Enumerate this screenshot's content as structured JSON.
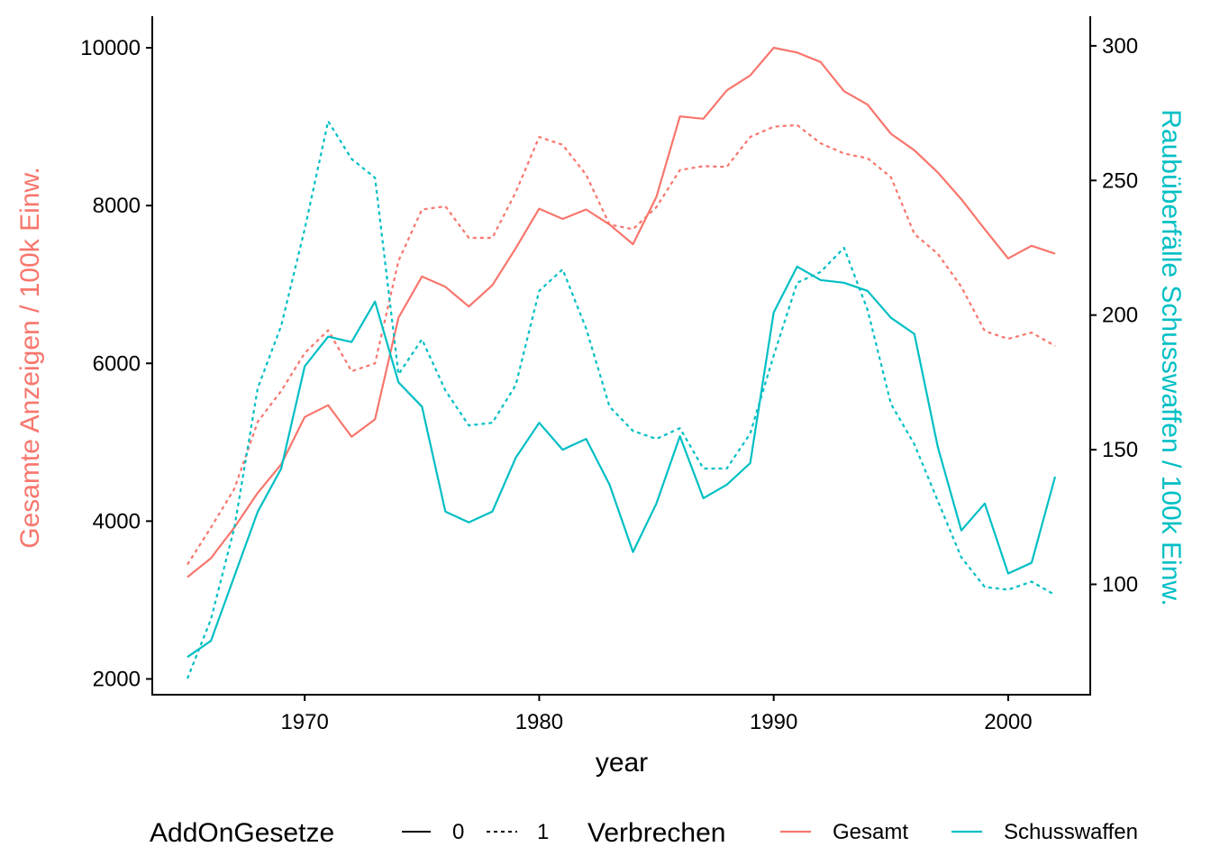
{
  "chart_data": {
    "type": "line",
    "xlabel": "year",
    "ylabel_left": "Gesamte Anzeigen / 100k Einw.",
    "ylabel_right": "Raubüberfälle Schusswaffen / 100k Einw.",
    "xlim": [
      1963.5,
      2003.5
    ],
    "ylim_left": [
      1800,
      10400
    ],
    "ylim_right": [
      59,
      311
    ],
    "x_ticks": [
      "1970",
      "1980",
      "1990",
      "2000"
    ],
    "x_tick_values": [
      1970,
      1980,
      1990,
      2000
    ],
    "y_left_ticks": [
      "2000",
      "4000",
      "6000",
      "8000",
      "10000"
    ],
    "y_left_tick_values": [
      2000,
      4000,
      6000,
      8000,
      10000
    ],
    "y_right_ticks": [
      "100",
      "150",
      "200",
      "250",
      "300"
    ],
    "y_right_tick_values": [
      100,
      150,
      200,
      250,
      300
    ],
    "grid": false,
    "legend_position": "bottom",
    "colors": {
      "Gesamt": "#F8766D",
      "Schusswaffen": "#00BFC4",
      "axis": "#000000"
    },
    "legend": {
      "linetype_title": "AddOnGesetze",
      "linetype_items": [
        {
          "label": "0",
          "dash": "solid"
        },
        {
          "label": "1",
          "dash": "dotted"
        }
      ],
      "color_title": "Verbrechen",
      "color_items": [
        {
          "label": "Gesamt",
          "color": "#F8766D"
        },
        {
          "label": "Schusswaffen",
          "color": "#00BFC4"
        }
      ]
    },
    "x": [
      1965,
      1966,
      1967,
      1968,
      1969,
      1970,
      1971,
      1972,
      1973,
      1974,
      1975,
      1976,
      1977,
      1978,
      1979,
      1980,
      1981,
      1982,
      1983,
      1984,
      1985,
      1986,
      1987,
      1988,
      1989,
      1990,
      1991,
      1992,
      1993,
      1994,
      1995,
      1996,
      1997,
      1998,
      1999,
      2000,
      2001,
      2002
    ],
    "series": [
      {
        "name": "Gesamt",
        "AddOnGesetze": "0",
        "axis": "left",
        "values": [
          3290,
          3530,
          3920,
          4360,
          4720,
          5320,
          5470,
          5070,
          5290,
          6580,
          7100,
          6970,
          6720,
          6990,
          7460,
          7960,
          7830,
          7950,
          7760,
          7510,
          8110,
          9130,
          9100,
          9460,
          9650,
          10000,
          9940,
          9820,
          9450,
          9280,
          8910,
          8700,
          8420,
          8080,
          7700,
          7330,
          7490,
          7390
        ]
      },
      {
        "name": "Gesamt",
        "AddOnGesetze": "1",
        "axis": "left",
        "values": [
          3450,
          3920,
          4410,
          5260,
          5650,
          6130,
          6420,
          5900,
          6000,
          7300,
          7950,
          7990,
          7590,
          7590,
          8170,
          8870,
          8770,
          8390,
          7760,
          7700,
          7980,
          8450,
          8500,
          8490,
          8870,
          9000,
          9020,
          8790,
          8660,
          8600,
          8360,
          7640,
          7390,
          6970,
          6410,
          6310,
          6390,
          6220
        ]
      },
      {
        "name": "Schusswaffen",
        "AddOnGesetze": "0",
        "axis": "right",
        "values": [
          73,
          79,
          103,
          127,
          143,
          181,
          192,
          190,
          205,
          175,
          166,
          127,
          123,
          127,
          147,
          160,
          150,
          154,
          137,
          112,
          130,
          155,
          132,
          137,
          145,
          201,
          218,
          213,
          212,
          209,
          199,
          193,
          151,
          120,
          130,
          104,
          108,
          140
        ]
      },
      {
        "name": "Schusswaffen",
        "AddOnGesetze": "1",
        "axis": "right",
        "values": [
          65,
          87,
          121,
          173,
          196,
          232,
          272,
          258,
          251,
          178,
          191,
          172,
          159,
          160,
          174,
          209,
          217,
          195,
          166,
          157,
          154,
          158,
          143,
          143,
          156,
          185,
          212,
          216,
          225,
          202,
          167,
          152,
          131,
          110,
          99,
          98,
          101,
          96
        ]
      }
    ]
  }
}
